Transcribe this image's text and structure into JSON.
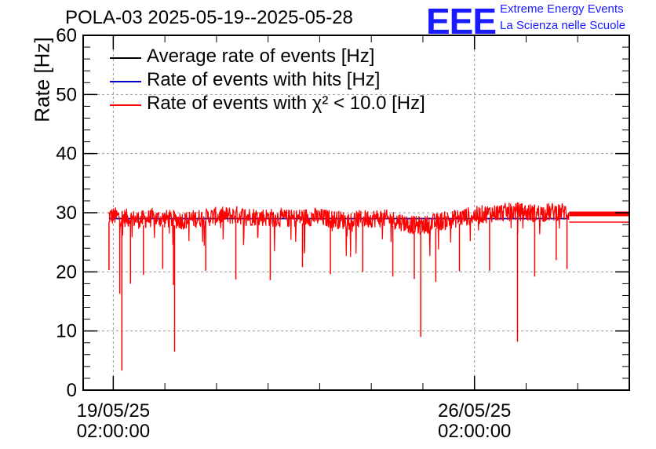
{
  "colors": {
    "average": "#000000",
    "hits": "#0000cc",
    "chi2": "#ff0000",
    "logo": "#1a1aff",
    "grid": "#999999"
  },
  "header": {
    "title": "POLA-03 2025-05-19--2025-05-28",
    "logo_letters": "EEE",
    "logo_line1": "Extreme Energy Events",
    "logo_line2": "La Scienza nelle Scuole"
  },
  "chart_data": {
    "type": "line",
    "title": "POLA-03 2025-05-19--2025-05-28",
    "xlabel": "",
    "ylabel": "Rate [Hz]",
    "xlim": [
      "2025-05-18 12:00",
      "2025-05-29 02:00"
    ],
    "ylim": [
      0,
      60
    ],
    "yticks": [
      0,
      10,
      20,
      30,
      40,
      50,
      60
    ],
    "xticks": [
      {
        "x": "2025-05-19 02:00:00",
        "label_date": "19/05/25",
        "label_time": "02:00:00"
      },
      {
        "x": "2025-05-26 02:00:00",
        "label_date": "26/05/25",
        "label_time": "02:00:00"
      }
    ],
    "grid": true,
    "legend": "top-left",
    "series": [
      {
        "name": "Average rate of events [Hz]",
        "color": "#000000",
        "x": [
          "2025-05-19 00:00",
          "2025-05-27 22:00"
        ],
        "values": [
          29.0,
          29.0
        ]
      },
      {
        "name": "Rate of events with hits [Hz]",
        "color": "#0000cc",
        "x": [
          "2025-05-19 00:00",
          "2025-05-27 22:00"
        ],
        "values": [
          29.0,
          29.0
        ]
      },
      {
        "name": "Rate of events with χ² < 10.0 [Hz]",
        "color": "#ff0000",
        "x": [
          "2025-05-18 23:48",
          "2025-05-19 05:00",
          "2025-05-19 10:00",
          "2025-05-19 15:00",
          "2025-05-19 20:00",
          "2025-05-20 01:00",
          "2025-05-20 06:00",
          "2025-05-20 11:00",
          "2025-05-20 16:00",
          "2025-05-20 21:00",
          "2025-05-21 02:00",
          "2025-05-21 07:00",
          "2025-05-21 12:00",
          "2025-05-21 17:00",
          "2025-05-21 22:00",
          "2025-05-22 03:00",
          "2025-05-22 08:00",
          "2025-05-22 13:00",
          "2025-05-22 18:00",
          "2025-05-22 23:00",
          "2025-05-23 04:00",
          "2025-05-23 09:00",
          "2025-05-23 14:00",
          "2025-05-23 19:00",
          "2025-05-24 00:00",
          "2025-05-24 05:00",
          "2025-05-24 10:00",
          "2025-05-24 15:00",
          "2025-05-24 20:00",
          "2025-05-25 01:00",
          "2025-05-25 06:00",
          "2025-05-25 11:00",
          "2025-05-25 16:00",
          "2025-05-25 21:00",
          "2025-05-26 02:00",
          "2025-05-26 07:00",
          "2025-05-26 12:00",
          "2025-05-26 17:00",
          "2025-05-26 22:00",
          "2025-05-27 03:00",
          "2025-05-27 08:00",
          "2025-05-27 13:00",
          "2025-05-27 18:00",
          "2025-05-27 22:00"
        ],
        "values": [
          29.5,
          29.3,
          29.0,
          28.8,
          29.1,
          29.0,
          28.9,
          28.7,
          29.0,
          29.2,
          29.4,
          29.5,
          29.6,
          29.4,
          29.3,
          29.2,
          29.1,
          29.0,
          29.2,
          29.3,
          29.1,
          28.9,
          28.7,
          28.8,
          29.0,
          29.1,
          28.9,
          28.6,
          28.0,
          27.8,
          28.2,
          28.6,
          28.9,
          29.3,
          29.5,
          29.8,
          30.0,
          30.1,
          30.2,
          30.0,
          29.9,
          30.1,
          30.2,
          30.0
        ],
        "dips": [
          {
            "x": "2025-05-19 00:00",
            "value": 20.3
          },
          {
            "x": "2025-05-19 05:00",
            "value": 16.3
          },
          {
            "x": "2025-05-19 06:00",
            "value": 3.3
          },
          {
            "x": "2025-05-19 10:00",
            "value": 18.0
          },
          {
            "x": "2025-05-19 16:00",
            "value": 19.5
          },
          {
            "x": "2025-05-20 01:00",
            "value": 20.5
          },
          {
            "x": "2025-05-20 06:00",
            "value": 17.8
          },
          {
            "x": "2025-05-20 06:30",
            "value": 6.5
          },
          {
            "x": "2025-05-20 21:00",
            "value": 20.2
          },
          {
            "x": "2025-05-21 11:00",
            "value": 18.7
          },
          {
            "x": "2025-05-22 03:00",
            "value": 18.6
          },
          {
            "x": "2025-05-22 18:00",
            "value": 20.8
          },
          {
            "x": "2025-05-23 07:00",
            "value": 19.6
          },
          {
            "x": "2025-05-23 22:00",
            "value": 20.0
          },
          {
            "x": "2025-05-24 12:00",
            "value": 19.2
          },
          {
            "x": "2025-05-24 22:00",
            "value": 18.8
          },
          {
            "x": "2025-05-25 01:00",
            "value": 9.0
          },
          {
            "x": "2025-05-25 08:00",
            "value": 18.3
          },
          {
            "x": "2025-05-25 19:00",
            "value": 20.1
          },
          {
            "x": "2025-05-26 09:00",
            "value": 20.2
          },
          {
            "x": "2025-05-26 22:00",
            "value": 8.2
          },
          {
            "x": "2025-05-27 06:00",
            "value": 19.2
          },
          {
            "x": "2025-05-27 16:00",
            "value": 22.0
          },
          {
            "x": "2025-05-27 21:00",
            "value": 20.5
          }
        ],
        "tail_x": [
          "2025-05-27 22:00",
          "2025-05-29 02:00"
        ],
        "tail_values": [
          29.8,
          29.8
        ]
      }
    ]
  }
}
